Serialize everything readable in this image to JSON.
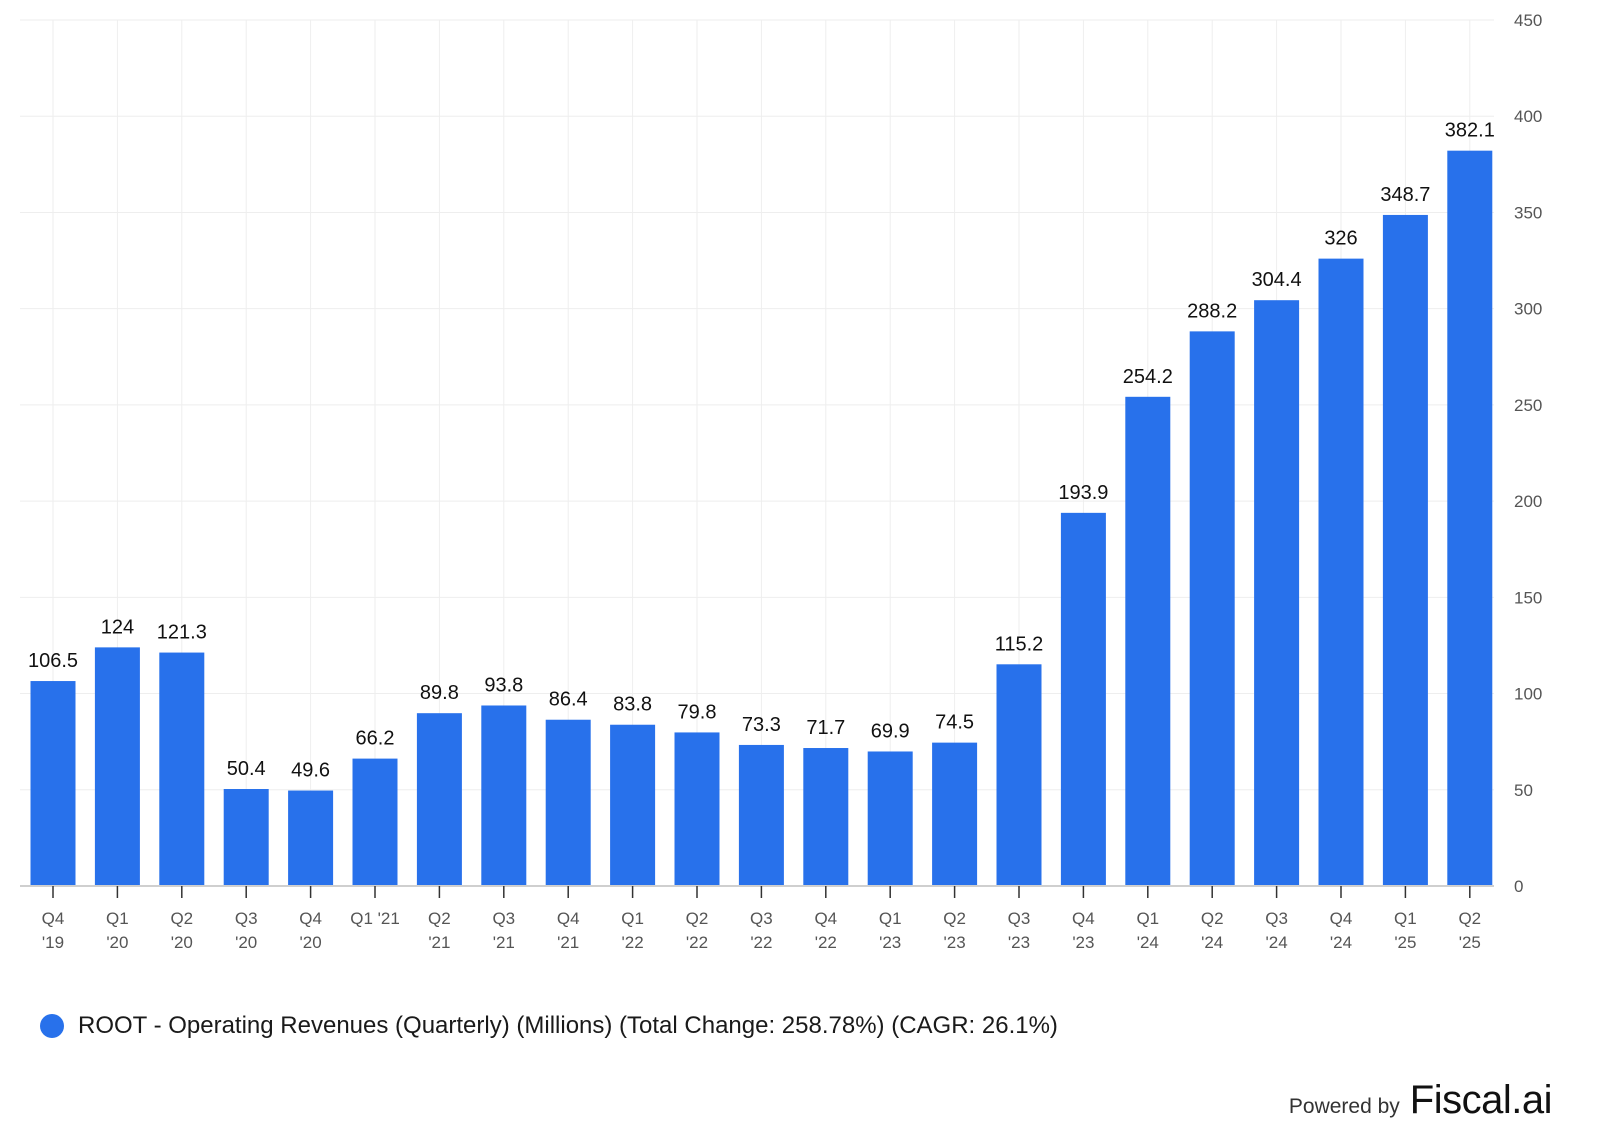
{
  "chart_data": {
    "type": "bar",
    "title": "",
    "xlabel": "",
    "ylabel": "",
    "ylim": [
      0,
      450
    ],
    "yticks": [
      0,
      50,
      100,
      150,
      200,
      250,
      300,
      350,
      400,
      450
    ],
    "y_axis_position": "right",
    "grid": true,
    "categories": [
      [
        "Q4",
        "'19"
      ],
      [
        "Q1",
        "'20"
      ],
      [
        "Q2",
        "'20"
      ],
      [
        "Q3",
        "'20"
      ],
      [
        "Q4",
        "'20"
      ],
      [
        "Q1 '21"
      ],
      [
        "Q2",
        "'21"
      ],
      [
        "Q3",
        "'21"
      ],
      [
        "Q4",
        "'21"
      ],
      [
        "Q1",
        "'22"
      ],
      [
        "Q2",
        "'22"
      ],
      [
        "Q3",
        "'22"
      ],
      [
        "Q4",
        "'22"
      ],
      [
        "Q1",
        "'23"
      ],
      [
        "Q2",
        "'23"
      ],
      [
        "Q3",
        "'23"
      ],
      [
        "Q4",
        "'23"
      ],
      [
        "Q1",
        "'24"
      ],
      [
        "Q2",
        "'24"
      ],
      [
        "Q3",
        "'24"
      ],
      [
        "Q4",
        "'24"
      ],
      [
        "Q1",
        "'25"
      ],
      [
        "Q2",
        "'25"
      ]
    ],
    "series": [
      {
        "name": "ROOT - Operating Revenues (Quarterly) (Millions) (Total Change: 258.78%) (CAGR: 26.1%)",
        "color": "#2871eb",
        "values": [
          106.5,
          124,
          121.3,
          50.4,
          49.6,
          66.2,
          89.8,
          93.8,
          86.4,
          83.8,
          79.8,
          73.3,
          71.7,
          69.9,
          74.5,
          115.2,
          193.9,
          254.2,
          288.2,
          304.4,
          326,
          348.7,
          382.1
        ],
        "labels": [
          "106.5",
          "124",
          "121.3",
          "50.4",
          "49.6",
          "66.2",
          "89.8",
          "93.8",
          "86.4",
          "83.8",
          "79.8",
          "73.3",
          "71.7",
          "69.9",
          "74.5",
          "115.2",
          "193.9",
          "254.2",
          "288.2",
          "304.4",
          "326",
          "348.7",
          "382.1"
        ]
      }
    ],
    "legend": {
      "position": "bottom-left",
      "entries": [
        "ROOT - Operating Revenues (Quarterly) (Millions) (Total Change: 258.78%) (CAGR: 26.1%)"
      ]
    }
  },
  "branding": {
    "powered_by": "Powered by",
    "name": "Fiscal.ai"
  }
}
